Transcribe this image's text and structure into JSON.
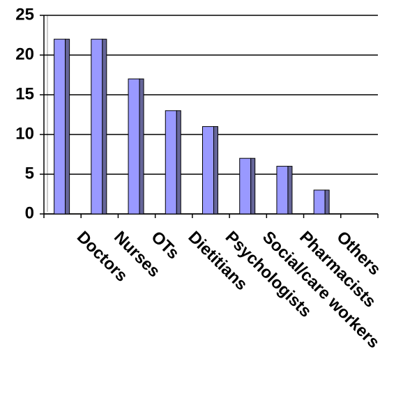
{
  "chart_data": {
    "type": "bar",
    "categories": [
      "Doctors",
      "Nurses",
      "OTs",
      "Dietitians",
      "Psychologists",
      "Social/care workers",
      "Pharmacists",
      "Others",
      null
    ],
    "values": [
      22,
      22,
      17,
      13,
      11,
      7,
      6,
      3,
      null
    ],
    "color": "#9999ff",
    "ylim": [
      0,
      25
    ],
    "yticks": [
      0,
      5,
      10,
      15,
      20,
      25
    ],
    "grid": true
  }
}
